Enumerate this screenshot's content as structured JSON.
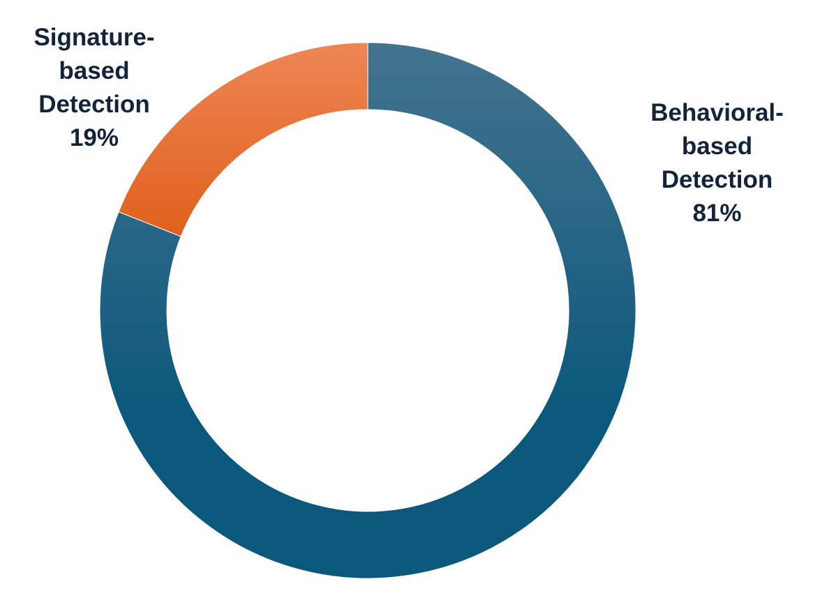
{
  "chart_data": {
    "type": "pie",
    "donut": true,
    "title": "",
    "legend": "none",
    "start_angle_deg": 0,
    "slices": [
      {
        "name": "Signature-based Detection",
        "label_lines": [
          "Signature-",
          "based",
          "Detection"
        ],
        "value": 19,
        "value_label": "19%",
        "color_light": "#ee8656",
        "color_dark": "#e0601c"
      },
      {
        "name": "Behavioral-based Detection",
        "label_lines": [
          "Behavioral-",
          "based",
          "Detection"
        ],
        "value": 81,
        "value_label": "81%",
        "color_light": "#44738f",
        "color_dark": "#0b587c"
      }
    ]
  }
}
